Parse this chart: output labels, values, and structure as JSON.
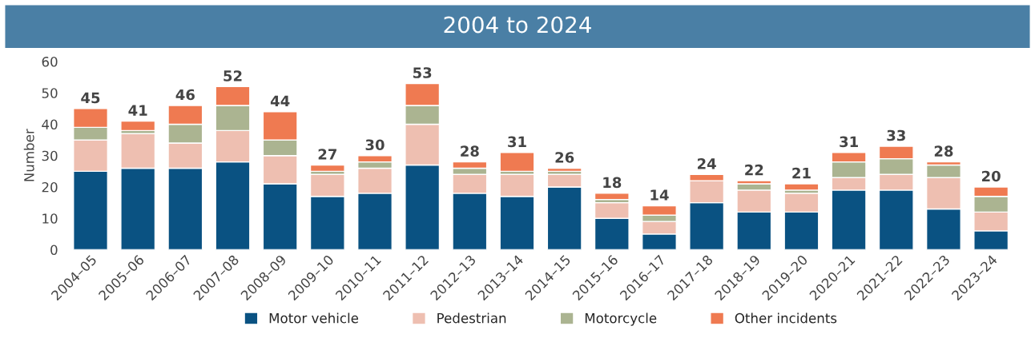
{
  "chart_data": {
    "type": "bar",
    "title": "2004 to 2024",
    "ylabel": "Number",
    "categories": [
      "2004–05",
      "2005–06",
      "2006–07",
      "2007–08",
      "2008–09",
      "2009–10",
      "2010–11",
      "2011–12",
      "2012–13",
      "2013–14",
      "2014–15",
      "2015–16",
      "2016–17",
      "2017–18",
      "2018–19",
      "2019–20",
      "2020–21",
      "2021–22",
      "2022–23",
      "2023–24"
    ],
    "series": [
      {
        "name": "Motor vehicle",
        "color": "#0a5282",
        "values": [
          25,
          26,
          26,
          28,
          21,
          17,
          18,
          27,
          18,
          17,
          20,
          10,
          5,
          15,
          12,
          12,
          19,
          19,
          13,
          6
        ]
      },
      {
        "name": "Pedestrian",
        "color": "#eebfb1",
        "values": [
          10,
          11,
          8,
          10,
          9,
          7,
          8,
          13,
          6,
          7,
          4,
          5,
          4,
          7,
          7,
          6,
          4,
          5,
          10,
          6
        ]
      },
      {
        "name": "Motorcycle",
        "color": "#abb491",
        "values": [
          4,
          1,
          6,
          8,
          5,
          1,
          2,
          6,
          2,
          1,
          1,
          1,
          2,
          0,
          2,
          1,
          5,
          5,
          4,
          5
        ]
      },
      {
        "name": "Other incidents",
        "color": "#ef7a51",
        "values": [
          6,
          3,
          6,
          6,
          9,
          2,
          2,
          7,
          2,
          6,
          1,
          2,
          3,
          2,
          1,
          2,
          3,
          4,
          1,
          3
        ]
      }
    ],
    "stacked": true,
    "totals": [
      "45",
      "41",
      "46",
      "52",
      "44",
      "27",
      "30",
      "53",
      "28",
      "31",
      "26",
      "18",
      "14",
      "24",
      "22",
      "21",
      "31",
      "33",
      "28",
      "20"
    ],
    "ylim": [
      0,
      60
    ],
    "yticks": [
      0,
      10,
      20,
      30,
      40,
      50,
      60
    ],
    "grid": false,
    "legend": "bottom"
  }
}
